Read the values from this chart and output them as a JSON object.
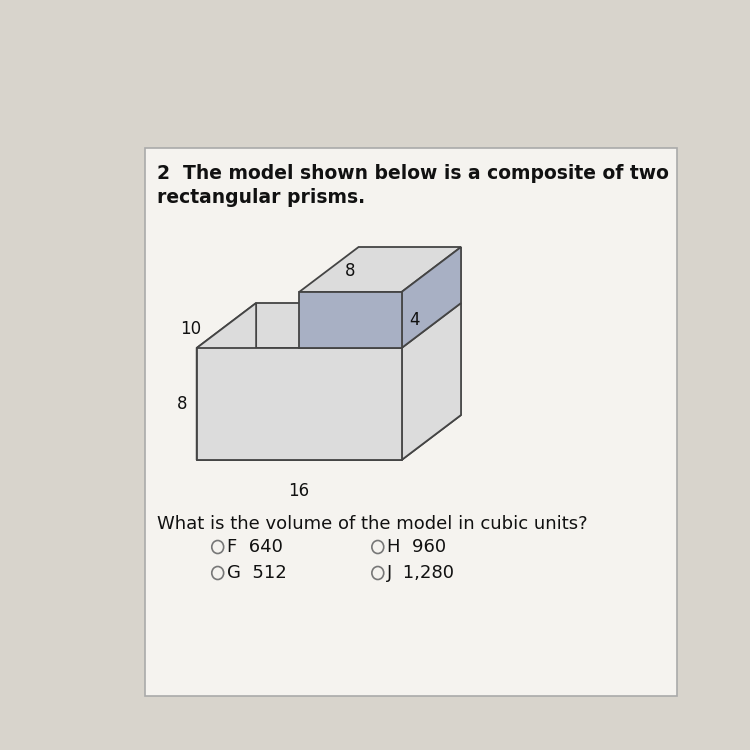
{
  "title_line1": "2  The model shown below is a composite of two",
  "title_line2": "rectangular prisms.",
  "question": "What is the volume of the model in cubic units?",
  "answers": [
    {
      "label": "F",
      "value": "640",
      "col": 0
    },
    {
      "label": "H",
      "value": "960",
      "col": 1
    },
    {
      "label": "G",
      "value": "512",
      "col": 0
    },
    {
      "label": "J",
      "value": "1,280",
      "col": 1
    }
  ],
  "dim_labels": {
    "top_width": "8",
    "depth": "10",
    "left_height": "8",
    "bottom_width": "16",
    "right_height": "4"
  },
  "bg_color": "#d8d4cc",
  "box_bg": "#f5f3ef",
  "face_fill_light": "#dcdcdc",
  "face_fill_blue": "#a8b0c4",
  "edge_color": "#444444",
  "title_color": "#111111",
  "question_color": "#111111"
}
